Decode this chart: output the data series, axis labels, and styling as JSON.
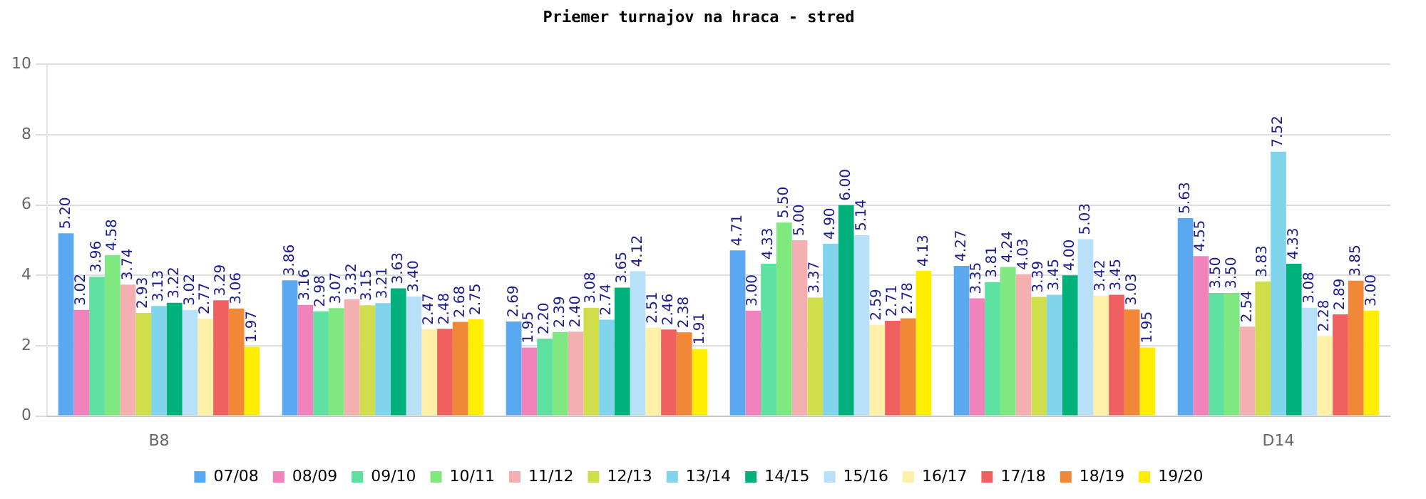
{
  "chart_data": {
    "type": "bar",
    "title": "Priemer turnajov na hraca - stred",
    "categories": [
      "B8",
      null,
      null,
      null,
      null,
      "D14"
    ],
    "ylim": [
      0,
      10
    ],
    "yticks": [
      0,
      2,
      4,
      6,
      8,
      10
    ],
    "grid": "y",
    "legend": "bottom",
    "series": [
      {
        "name": "07/08",
        "color": "#5aa9f0",
        "values": [
          5.2,
          3.86,
          2.69,
          4.71,
          4.27,
          5.63
        ],
        "value_labels": [
          "5.20",
          "3.86",
          "2.69",
          "4.71",
          "4.27",
          "5.63"
        ]
      },
      {
        "name": "08/09",
        "color": "#f082bc",
        "values": [
          3.02,
          3.16,
          1.95,
          3.0,
          3.35,
          4.55
        ],
        "value_labels": [
          "3.02",
          "3.16",
          "1.95",
          "3.00",
          "3.35",
          "4.55"
        ]
      },
      {
        "name": "09/10",
        "color": "#5ee0a0",
        "values": [
          3.96,
          2.98,
          2.2,
          4.33,
          3.81,
          3.5
        ],
        "value_labels": [
          "3.96",
          "2.98",
          "2.20",
          "4.33",
          "3.81",
          "3.50"
        ]
      },
      {
        "name": "10/11",
        "color": "#80e880",
        "values": [
          4.58,
          3.07,
          2.39,
          5.5,
          4.24,
          3.5
        ],
        "value_labels": [
          "4.58",
          "3.07",
          "2.39",
          "5.50",
          "4.24",
          "3.50"
        ]
      },
      {
        "name": "11/12",
        "color": "#f4b0b0",
        "values": [
          3.74,
          3.32,
          2.4,
          5.0,
          4.03,
          2.54
        ],
        "value_labels": [
          "3.74",
          "3.32",
          "2.40",
          "5.00",
          "4.03",
          "2.54"
        ]
      },
      {
        "name": "12/13",
        "color": "#d0de4c",
        "values": [
          2.93,
          3.15,
          3.08,
          3.37,
          3.39,
          3.83
        ],
        "value_labels": [
          "2.93",
          "3.15",
          "3.08",
          "3.37",
          "3.39",
          "3.83"
        ]
      },
      {
        "name": "13/14",
        "color": "#80d4ec",
        "values": [
          3.13,
          3.21,
          2.74,
          4.9,
          3.45,
          7.52
        ],
        "value_labels": [
          "3.13",
          "3.21",
          "2.74",
          "4.90",
          "3.45",
          "7.52"
        ]
      },
      {
        "name": "14/15",
        "color": "#00b07a",
        "values": [
          3.22,
          3.63,
          3.65,
          6.0,
          4.0,
          4.33
        ],
        "value_labels": [
          "3.22",
          "3.63",
          "3.65",
          "6.00",
          "4.00",
          "4.33"
        ]
      },
      {
        "name": "15/16",
        "color": "#b8e0f8",
        "values": [
          3.02,
          3.4,
          4.12,
          5.14,
          5.03,
          3.08
        ],
        "value_labels": [
          "3.02",
          "3.40",
          "4.12",
          "5.14",
          "5.03",
          "3.08"
        ]
      },
      {
        "name": "16/17",
        "color": "#fff0a8",
        "values": [
          2.77,
          2.47,
          2.51,
          2.59,
          3.42,
          2.28
        ],
        "value_labels": [
          "2.77",
          "2.47",
          "2.51",
          "2.59",
          "3.42",
          "2.28"
        ]
      },
      {
        "name": "17/18",
        "color": "#f06060",
        "values": [
          3.29,
          2.48,
          2.46,
          2.71,
          3.45,
          2.89
        ],
        "value_labels": [
          "3.29",
          "2.48",
          "2.46",
          "2.71",
          "3.45",
          "2.89"
        ]
      },
      {
        "name": "18/19",
        "color": "#f08838",
        "values": [
          3.06,
          2.68,
          2.38,
          2.78,
          3.03,
          3.85
        ],
        "value_labels": [
          "3.06",
          "2.68",
          "2.38",
          "2.78",
          "3.03",
          "3.85"
        ]
      },
      {
        "name": "19/20",
        "color": "#ffee00",
        "values": [
          1.97,
          2.75,
          1.91,
          4.13,
          1.95,
          3.0
        ],
        "value_labels": [
          "1.97",
          "2.75",
          "1.91",
          "4.13",
          "1.95",
          "3.00"
        ]
      }
    ]
  }
}
